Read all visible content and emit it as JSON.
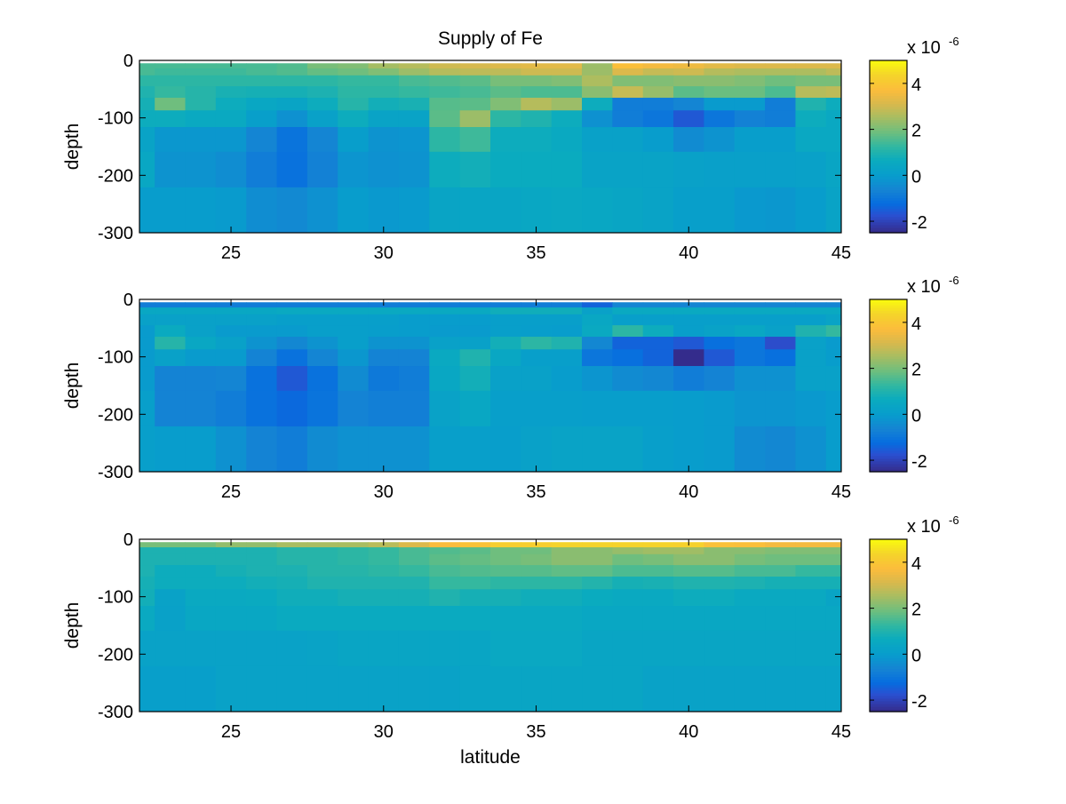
{
  "figure_title": "Supply of Fe",
  "chart_data": [
    {
      "type": "heatmap",
      "title": "Supply of Fe",
      "xlabel": "",
      "ylabel": "depth",
      "xlim": [
        22,
        45
      ],
      "ylim": [
        -300,
        0
      ],
      "x": [
        22,
        23,
        24,
        25,
        26,
        27,
        28,
        29,
        30,
        31,
        32,
        33,
        34,
        35,
        36,
        37,
        38,
        39,
        40,
        41,
        42,
        43,
        44,
        45
      ],
      "depth_edges": [
        -5,
        -14,
        -26,
        -45,
        -65,
        -87,
        -116,
        -159,
        -221,
        -300
      ],
      "xticks": [
        25,
        30,
        35,
        40,
        45
      ],
      "xtick_labels": [
        "25",
        "30",
        "35",
        "40",
        "45"
      ],
      "yticks": [
        0,
        -100,
        -200,
        -300
      ],
      "ytick_labels": [
        "0",
        "-100",
        "-200",
        "-300"
      ],
      "clim": [
        -2.5,
        5
      ],
      "colormap": "parula",
      "colorbar": {
        "ticks": [
          -2,
          0,
          2,
          4
        ],
        "tick_labels": [
          "-2",
          "0",
          "2",
          "4"
        ],
        "multiplier": "x 10",
        "exponent": "-6"
      },
      "values": [
        [
          1.5,
          1.5,
          1.5,
          1.5,
          1.5,
          1.6,
          2.0,
          2.1,
          2.5,
          2.7,
          3.0,
          3.1,
          3.2,
          3.3,
          3.3,
          2.4,
          3.8,
          3.6,
          3.5,
          3.3,
          3.2,
          3.2,
          3.2,
          3.2
        ],
        [
          1.5,
          1.4,
          1.4,
          1.4,
          1.5,
          1.6,
          1.8,
          1.9,
          2.1,
          2.4,
          2.7,
          2.8,
          2.8,
          3.0,
          3.0,
          2.4,
          3.2,
          2.9,
          3.0,
          2.7,
          2.6,
          2.6,
          2.6,
          2.8
        ],
        [
          1.2,
          1.2,
          1.2,
          1.2,
          1.2,
          1.2,
          1.2,
          1.3,
          1.3,
          1.5,
          1.6,
          1.7,
          2.0,
          2.0,
          2.1,
          2.6,
          2.1,
          2.1,
          2.2,
          2.2,
          2.1,
          1.9,
          2.0,
          2.0
        ],
        [
          1.0,
          1.3,
          1.1,
          0.9,
          0.85,
          0.85,
          0.95,
          1.2,
          1.2,
          1.3,
          1.4,
          1.5,
          1.7,
          1.55,
          1.55,
          2.2,
          2.9,
          2.35,
          1.7,
          1.85,
          1.85,
          1.55,
          2.7,
          2.8
        ],
        [
          0.85,
          1.9,
          1.1,
          0.7,
          0.45,
          0.35,
          0.7,
          1.1,
          0.8,
          0.9,
          1.65,
          1.7,
          2.1,
          2.7,
          2.4,
          0.7,
          -0.8,
          -0.8,
          -0.6,
          -0.05,
          -0.05,
          -0.8,
          1.0,
          0.7
        ],
        [
          0.7,
          0.7,
          0.55,
          0.55,
          0.1,
          -0.3,
          0.2,
          0.7,
          0.3,
          0.3,
          1.7,
          2.4,
          1.2,
          1.0,
          0.7,
          -0.3,
          -0.8,
          -1.0,
          -1.6,
          -1.0,
          -0.7,
          -0.8,
          0.7,
          0.5
        ],
        [
          0.3,
          -0.15,
          -0.15,
          -0.15,
          -0.6,
          -1.05,
          -0.6,
          0.05,
          -0.25,
          -0.2,
          1.2,
          1.4,
          0.7,
          0.7,
          0.55,
          0.2,
          0.2,
          0.0,
          -0.45,
          -0.25,
          0.05,
          0.05,
          0.5,
          0.5
        ],
        [
          0.45,
          -0.25,
          -0.25,
          -0.4,
          -0.8,
          -1.1,
          -0.7,
          -0.2,
          -0.3,
          -0.25,
          0.7,
          0.8,
          0.65,
          0.65,
          0.65,
          0.3,
          0.3,
          0.3,
          0.2,
          0.15,
          0.15,
          0.15,
          0.2,
          0.4
        ],
        [
          0.0,
          0.0,
          0.0,
          -0.05,
          -0.4,
          -0.5,
          -0.3,
          0.0,
          -0.1,
          -0.05,
          0.35,
          0.4,
          0.4,
          0.45,
          0.5,
          0.45,
          0.4,
          0.3,
          0.1,
          0.1,
          -0.1,
          -0.15,
          0.0,
          0.3
        ]
      ]
    },
    {
      "type": "heatmap",
      "title": "",
      "xlabel": "",
      "ylabel": "depth",
      "xlim": [
        22,
        45
      ],
      "ylim": [
        -300,
        0
      ],
      "x": [
        22,
        23,
        24,
        25,
        26,
        27,
        28,
        29,
        30,
        31,
        32,
        33,
        34,
        35,
        36,
        37,
        38,
        39,
        40,
        41,
        42,
        43,
        44,
        45
      ],
      "depth_edges": [
        -5,
        -14,
        -26,
        -45,
        -65,
        -87,
        -116,
        -159,
        -221,
        -300
      ],
      "xticks": [
        25,
        30,
        35,
        40,
        45
      ],
      "xtick_labels": [
        "25",
        "30",
        "35",
        "40",
        "45"
      ],
      "yticks": [
        0,
        -100,
        -200,
        -300
      ],
      "ytick_labels": [
        "0",
        "-100",
        "-200",
        "-300"
      ],
      "clim": [
        -2.5,
        5
      ],
      "colormap": "parula",
      "colorbar": {
        "ticks": [
          -2,
          0,
          2,
          4
        ],
        "tick_labels": [
          "-2",
          "0",
          "2",
          "4"
        ],
        "multiplier": "x 10",
        "exponent": "-6"
      },
      "values": [
        [
          -0.8,
          -0.8,
          -0.8,
          -0.8,
          -0.8,
          -0.8,
          -0.8,
          -0.8,
          -0.8,
          -0.8,
          -0.8,
          -0.8,
          -0.8,
          -0.8,
          -0.8,
          -1.4,
          -0.6,
          -0.6,
          -0.6,
          -0.6,
          -0.6,
          -0.6,
          -0.6,
          -0.6
        ],
        [
          0.45,
          0.45,
          0.45,
          0.45,
          0.45,
          0.55,
          0.55,
          0.55,
          0.55,
          0.55,
          0.55,
          0.55,
          0.75,
          0.75,
          0.75,
          0.2,
          0.55,
          0.55,
          0.55,
          0.55,
          0.55,
          0.55,
          0.55,
          0.55
        ],
        [
          0.2,
          0.2,
          0.2,
          0.2,
          0.2,
          0.1,
          0.1,
          0.1,
          0.1,
          0.0,
          0.0,
          0.0,
          0.1,
          0.1,
          0.1,
          0.45,
          0.1,
          0.1,
          0.1,
          0.1,
          0.1,
          0.1,
          0.1,
          0.3
        ],
        [
          -0.05,
          0.6,
          0.2,
          -0.05,
          -0.05,
          -0.05,
          0.1,
          0.1,
          0.05,
          0.0,
          -0.05,
          -0.05,
          0.1,
          0.05,
          0.0,
          0.55,
          1.2,
          0.7,
          0.1,
          0.25,
          0.45,
          0.2,
          1.0,
          1.3
        ],
        [
          -0.05,
          1.1,
          0.45,
          0.2,
          -0.25,
          -0.55,
          -0.25,
          0.1,
          -0.25,
          -0.25,
          0.2,
          0.2,
          0.8,
          1.2,
          1.0,
          -0.55,
          -1.4,
          -1.4,
          -1.6,
          -1.15,
          -1.0,
          -1.8,
          0.2,
          -0.05
        ],
        [
          -0.05,
          0.2,
          -0.05,
          -0.05,
          -0.65,
          -1.1,
          -0.6,
          -0.15,
          -0.65,
          -0.65,
          0.55,
          1.0,
          0.45,
          0.1,
          0.1,
          -1.0,
          -1.15,
          -1.4,
          -2.45,
          -1.6,
          -1.0,
          -1.15,
          0.2,
          0.0
        ],
        [
          -0.05,
          -0.65,
          -0.65,
          -0.6,
          -1.1,
          -1.6,
          -1.1,
          -0.45,
          -0.9,
          -0.8,
          0.45,
          0.8,
          0.2,
          0.2,
          0.0,
          -0.2,
          -0.45,
          -0.55,
          -0.8,
          -0.65,
          -0.3,
          -0.3,
          0.2,
          0.2
        ],
        [
          0.1,
          -0.65,
          -0.65,
          -0.8,
          -1.1,
          -1.3,
          -1.05,
          -0.65,
          -0.75,
          -0.75,
          0.25,
          0.45,
          0.1,
          0.1,
          0.1,
          0.05,
          0.05,
          0.05,
          0.0,
          -0.05,
          -0.2,
          -0.2,
          -0.1,
          0.0
        ],
        [
          0.1,
          0.0,
          0.0,
          -0.3,
          -0.65,
          -0.8,
          -0.45,
          -0.3,
          -0.3,
          -0.3,
          0.1,
          0.1,
          0.05,
          0.2,
          0.3,
          0.3,
          0.3,
          0.1,
          0.0,
          -0.05,
          -0.45,
          -0.55,
          -0.3,
          0.0
        ]
      ]
    },
    {
      "type": "heatmap",
      "title": "",
      "xlabel": "latitude",
      "ylabel": "depth",
      "xlim": [
        22,
        45
      ],
      "ylim": [
        -300,
        0
      ],
      "x": [
        22,
        23,
        24,
        25,
        26,
        27,
        28,
        29,
        30,
        31,
        32,
        33,
        34,
        35,
        36,
        37,
        38,
        39,
        40,
        41,
        42,
        43,
        44,
        45
      ],
      "depth_edges": [
        -5,
        -14,
        -26,
        -45,
        -65,
        -87,
        -116,
        -159,
        -221,
        -300
      ],
      "xticks": [
        25,
        30,
        35,
        40,
        45
      ],
      "xtick_labels": [
        "25",
        "30",
        "35",
        "40",
        "45"
      ],
      "yticks": [
        0,
        -100,
        -200,
        -300
      ],
      "ytick_labels": [
        "0",
        "-100",
        "-200",
        "-300"
      ],
      "clim": [
        -2.5,
        5
      ],
      "colormap": "parula",
      "colorbar": {
        "ticks": [
          -2,
          0,
          2,
          4
        ],
        "tick_labels": [
          "-2",
          "0",
          "2",
          "4"
        ],
        "multiplier": "x 10",
        "exponent": "-6"
      },
      "values": [
        [
          2.0,
          2.0,
          2.0,
          2.3,
          2.3,
          2.55,
          2.55,
          2.55,
          2.75,
          3.2,
          3.7,
          3.9,
          4.2,
          4.2,
          4.35,
          4.35,
          4.35,
          4.35,
          4.3,
          3.85,
          3.8,
          3.6,
          3.6,
          3.6
        ],
        [
          0.95,
          0.95,
          0.95,
          0.95,
          0.95,
          1.1,
          1.1,
          1.2,
          1.3,
          1.5,
          1.6,
          1.7,
          1.9,
          1.9,
          2.2,
          2.2,
          2.35,
          2.45,
          2.45,
          2.2,
          2.2,
          2.1,
          2.1,
          2.1
        ],
        [
          0.95,
          0.95,
          0.95,
          0.95,
          0.95,
          1.1,
          1.1,
          1.2,
          1.3,
          1.5,
          1.7,
          1.8,
          1.9,
          2.0,
          2.2,
          2.2,
          1.9,
          2.0,
          2.2,
          2.2,
          2.0,
          1.9,
          1.9,
          1.9
        ],
        [
          0.95,
          0.7,
          0.7,
          0.85,
          0.95,
          0.95,
          1.1,
          1.1,
          1.2,
          1.3,
          1.5,
          1.6,
          1.65,
          1.65,
          1.75,
          1.75,
          1.55,
          1.55,
          1.65,
          1.65,
          1.5,
          1.5,
          1.3,
          1.3
        ],
        [
          0.85,
          0.7,
          0.7,
          0.7,
          0.8,
          0.85,
          1.0,
          1.0,
          1.0,
          1.0,
          1.3,
          1.3,
          1.2,
          1.2,
          1.2,
          1.05,
          0.85,
          0.9,
          1.0,
          1.0,
          0.95,
          0.85,
          0.85,
          0.85
        ],
        [
          0.8,
          0.25,
          0.55,
          0.55,
          0.6,
          0.75,
          0.75,
          0.85,
          0.85,
          0.85,
          1.0,
          0.85,
          0.85,
          0.75,
          0.75,
          0.65,
          0.55,
          0.55,
          0.7,
          0.7,
          0.55,
          0.55,
          0.55,
          0.35
        ],
        [
          0.55,
          0.2,
          0.45,
          0.45,
          0.45,
          0.6,
          0.6,
          0.6,
          0.6,
          0.6,
          0.6,
          0.6,
          0.55,
          0.55,
          0.55,
          0.45,
          0.45,
          0.45,
          0.45,
          0.45,
          0.45,
          0.45,
          0.45,
          0.45
        ],
        [
          0.25,
          0.25,
          0.25,
          0.25,
          0.25,
          0.25,
          0.3,
          0.4,
          0.4,
          0.4,
          0.4,
          0.4,
          0.5,
          0.5,
          0.5,
          0.4,
          0.4,
          0.4,
          0.4,
          0.4,
          0.4,
          0.4,
          0.4,
          0.4
        ],
        [
          0.1,
          0.1,
          0.1,
          0.25,
          0.25,
          0.25,
          0.25,
          0.25,
          0.25,
          0.25,
          0.25,
          0.35,
          0.4,
          0.4,
          0.4,
          0.4,
          0.4,
          0.25,
          0.25,
          0.25,
          0.25,
          0.25,
          0.25,
          0.25
        ]
      ]
    }
  ]
}
